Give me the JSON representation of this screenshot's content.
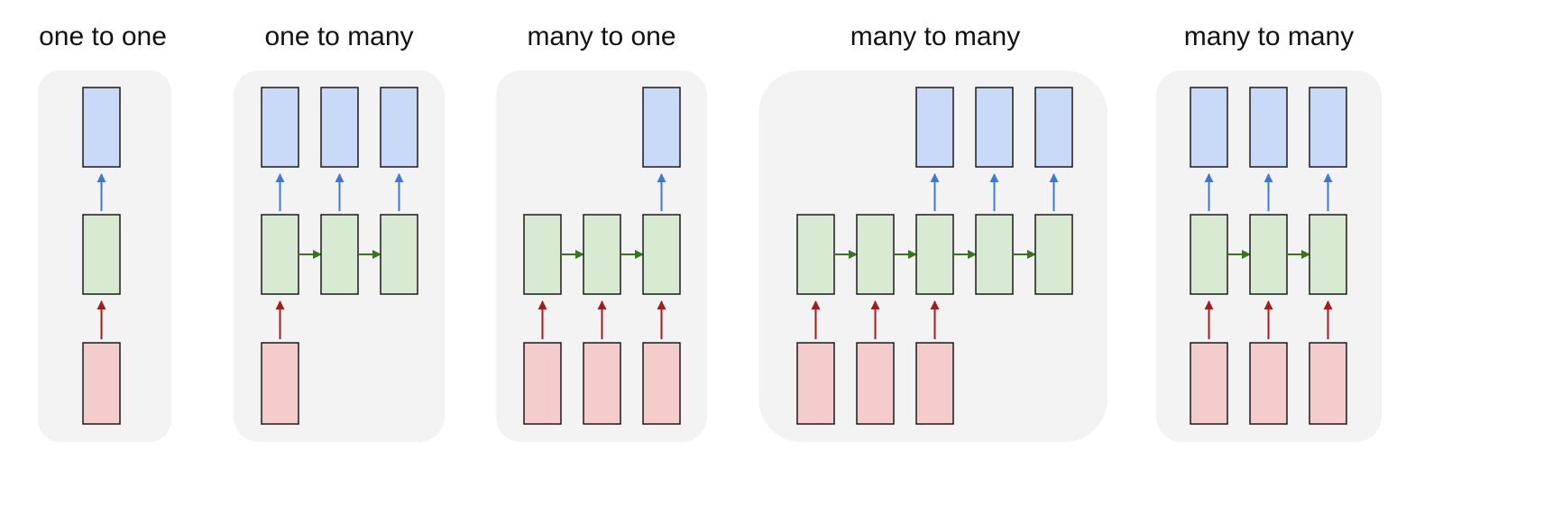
{
  "diagram": {
    "colors": {
      "panel_bg": "#f3f3f3",
      "output_fill": "#c9daf8",
      "hidden_fill": "#d9ead3",
      "input_fill": "#f4cccc",
      "box_stroke": "#1a1a1a",
      "output_arrow": "#3c78d8",
      "recurrent_arrow": "#38761d",
      "input_arrow": "#a61c1c"
    },
    "panels": [
      {
        "title": "one to one",
        "inputs": [
          true
        ],
        "outputs": [
          true
        ],
        "recurrent": false
      },
      {
        "title": "one to many",
        "inputs": [
          true,
          false,
          false
        ],
        "outputs": [
          true,
          true,
          true
        ],
        "recurrent": true
      },
      {
        "title": "many to one",
        "inputs": [
          true,
          true,
          true
        ],
        "outputs": [
          false,
          false,
          true
        ],
        "recurrent": true
      },
      {
        "title": "many to many",
        "inputs": [
          true,
          true,
          true,
          false,
          false
        ],
        "outputs": [
          false,
          false,
          true,
          true,
          true
        ],
        "recurrent": true
      },
      {
        "title": "many to many",
        "inputs": [
          true,
          true,
          true
        ],
        "outputs": [
          true,
          true,
          true
        ],
        "recurrent": true
      }
    ]
  }
}
